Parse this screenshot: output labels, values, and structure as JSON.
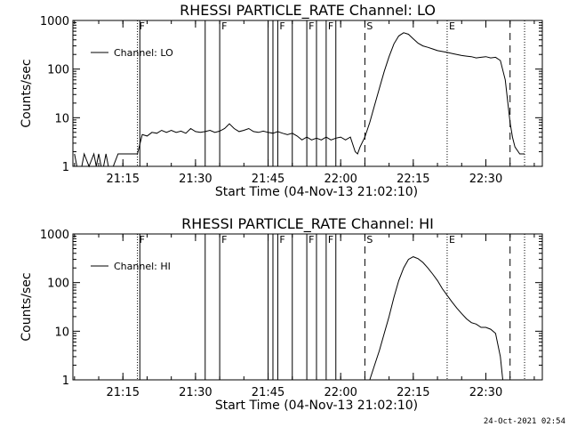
{
  "footer": {
    "timestamp": "24-Oct-2021 02:54"
  },
  "chart_data": [
    {
      "type": "line",
      "title": "RHESSI PARTICLE_RATE Channel: LO",
      "xlabel": "Start Time (04-Nov-13 21:02:10)",
      "ylabel": "Counts/sec",
      "y_scale": "log",
      "xlim": [
        "21:04:40",
        "22:41:40"
      ],
      "ylim": [
        1,
        1000
      ],
      "x_ticks": [
        "21:15",
        "21:30",
        "21:45",
        "22:00",
        "22:15",
        "22:30"
      ],
      "y_ticks": [
        "1",
        "10",
        "100",
        "1000"
      ],
      "legend": {
        "position": "top-left",
        "entries": [
          "Channel: LO"
        ]
      },
      "series": [
        {
          "name": "Channel: LO",
          "x": [
            "21:05",
            "21:05:30",
            "21:06",
            "21:06:30",
            "21:07",
            "21:08",
            "21:09",
            "21:09:30",
            "21:10",
            "21:10:30",
            "21:11",
            "21:11:30",
            "21:12",
            "21:13",
            "21:14",
            "21:15",
            "21:16",
            "21:17",
            "21:18",
            "21:19",
            "21:20",
            "21:21",
            "21:22",
            "21:23",
            "21:24",
            "21:25",
            "21:26",
            "21:27",
            "21:28",
            "21:29",
            "21:30",
            "21:31",
            "21:32",
            "21:33",
            "21:34",
            "21:35",
            "21:36",
            "21:37",
            "21:38",
            "21:39",
            "21:40",
            "21:41",
            "21:42",
            "21:43",
            "21:44",
            "21:45",
            "21:46",
            "21:47",
            "21:48",
            "21:49",
            "21:50",
            "21:51",
            "21:52",
            "21:53",
            "21:54",
            "21:55",
            "21:56",
            "21:57",
            "21:58",
            "21:59",
            "22:00",
            "22:01",
            "22:02",
            "22:03",
            "22:03:30",
            "22:04",
            "22:05",
            "22:06",
            "22:07",
            "22:08",
            "22:09",
            "22:10",
            "22:11",
            "22:12",
            "22:13",
            "22:14",
            "22:15",
            "22:16",
            "22:17",
            "22:18",
            "22:19",
            "22:20",
            "22:21",
            "22:22",
            "22:23",
            "22:24",
            "22:25",
            "22:26",
            "22:27",
            "22:28",
            "22:29",
            "22:30",
            "22:31",
            "22:32",
            "22:33",
            "22:34",
            "22:35",
            "22:35:30",
            "22:36",
            "22:37",
            "22:38"
          ],
          "values": [
            1.8,
            1,
            1,
            1,
            1.8,
            1,
            1.8,
            1,
            1.8,
            1,
            1,
            1.8,
            1,
            1,
            1.8,
            1.8,
            1.8,
            1.8,
            1.8,
            4.5,
            4.2,
            5,
            4.8,
            5.5,
            5,
            5.5,
            5,
            5.3,
            4.8,
            6,
            5.2,
            5,
            5.2,
            5.5,
            5,
            5.3,
            6,
            7.5,
            6,
            5.2,
            5.5,
            6,
            5.2,
            5,
            5.3,
            5,
            4.8,
            5.2,
            4.8,
            4.5,
            4.8,
            4.2,
            3.5,
            4,
            3.5,
            3.8,
            3.5,
            4,
            3.5,
            3.8,
            4,
            3.5,
            4,
            2,
            1.8,
            2.5,
            4,
            8,
            18,
            40,
            90,
            180,
            330,
            480,
            560,
            520,
            420,
            340,
            300,
            280,
            260,
            240,
            230,
            220,
            210,
            200,
            190,
            185,
            180,
            170,
            175,
            180,
            170,
            175,
            150,
            60,
            8,
            4,
            2.5,
            1.8,
            1.8
          ]
        }
      ],
      "flags": [
        {
          "label": "F",
          "style": "dotted",
          "x": "21:18"
        },
        {
          "label": "",
          "style": "solid",
          "x": "21:18:30"
        },
        {
          "label": "",
          "style": "solid",
          "x": "21:32"
        },
        {
          "label": "F",
          "style": "solid",
          "x": "21:35"
        },
        {
          "label": "",
          "style": "solid",
          "x": "21:45"
        },
        {
          "label": "",
          "style": "solid",
          "x": "21:46"
        },
        {
          "label": "F",
          "style": "solid",
          "x": "21:47"
        },
        {
          "label": "",
          "style": "solid",
          "x": "21:50"
        },
        {
          "label": "F",
          "style": "solid",
          "x": "21:53"
        },
        {
          "label": "",
          "style": "solid",
          "x": "21:55"
        },
        {
          "label": "F",
          "style": "solid",
          "x": "21:57"
        },
        {
          "label": "",
          "style": "solid",
          "x": "21:59"
        },
        {
          "label": "S",
          "style": "dashed",
          "x": "22:05"
        },
        {
          "label": "E",
          "style": "dotted",
          "x": "22:22"
        },
        {
          "label": "",
          "style": "dashed",
          "x": "22:35"
        },
        {
          "label": "",
          "style": "dotted",
          "x": "22:38"
        }
      ]
    },
    {
      "type": "line",
      "title": "RHESSI PARTICLE_RATE Channel: HI",
      "xlabel": "Start Time (04-Nov-13 21:02:10)",
      "ylabel": "Counts/sec",
      "y_scale": "log",
      "xlim": [
        "21:04:40",
        "22:41:40"
      ],
      "ylim": [
        1,
        1000
      ],
      "x_ticks": [
        "21:15",
        "21:30",
        "21:45",
        "22:00",
        "22:15",
        "22:30"
      ],
      "y_ticks": [
        "1",
        "10",
        "100",
        "1000"
      ],
      "legend": {
        "position": "top-left",
        "entries": [
          "Channel: HI"
        ]
      },
      "series": [
        {
          "name": "Channel: HI",
          "x": [
            "22:06",
            "22:07",
            "22:08",
            "22:09",
            "22:10",
            "22:11",
            "22:12",
            "22:13",
            "22:14",
            "22:15",
            "22:16",
            "22:17",
            "22:18",
            "22:19",
            "22:20",
            "22:21",
            "22:22",
            "22:23",
            "22:24",
            "22:25",
            "22:26",
            "22:27",
            "22:28",
            "22:29",
            "22:30",
            "22:31",
            "22:32",
            "22:33",
            "22:33:30"
          ],
          "values": [
            1,
            2,
            4,
            9,
            20,
            50,
            110,
            200,
            300,
            340,
            310,
            260,
            200,
            150,
            110,
            75,
            55,
            40,
            30,
            23,
            18,
            15,
            14,
            12,
            12,
            11,
            9,
            3,
            1
          ]
        }
      ],
      "flags": [
        {
          "label": "F",
          "style": "dotted",
          "x": "21:18"
        },
        {
          "label": "",
          "style": "solid",
          "x": "21:18:30"
        },
        {
          "label": "",
          "style": "solid",
          "x": "21:32"
        },
        {
          "label": "F",
          "style": "solid",
          "x": "21:35"
        },
        {
          "label": "",
          "style": "solid",
          "x": "21:45"
        },
        {
          "label": "",
          "style": "solid",
          "x": "21:46"
        },
        {
          "label": "F",
          "style": "solid",
          "x": "21:47"
        },
        {
          "label": "",
          "style": "solid",
          "x": "21:50"
        },
        {
          "label": "F",
          "style": "solid",
          "x": "21:53"
        },
        {
          "label": "",
          "style": "solid",
          "x": "21:55"
        },
        {
          "label": "F",
          "style": "solid",
          "x": "21:57"
        },
        {
          "label": "",
          "style": "solid",
          "x": "21:59"
        },
        {
          "label": "S",
          "style": "dashed",
          "x": "22:05"
        },
        {
          "label": "E",
          "style": "dotted",
          "x": "22:22"
        },
        {
          "label": "",
          "style": "dashed",
          "x": "22:35"
        },
        {
          "label": "",
          "style": "dotted",
          "x": "22:38"
        }
      ]
    }
  ]
}
